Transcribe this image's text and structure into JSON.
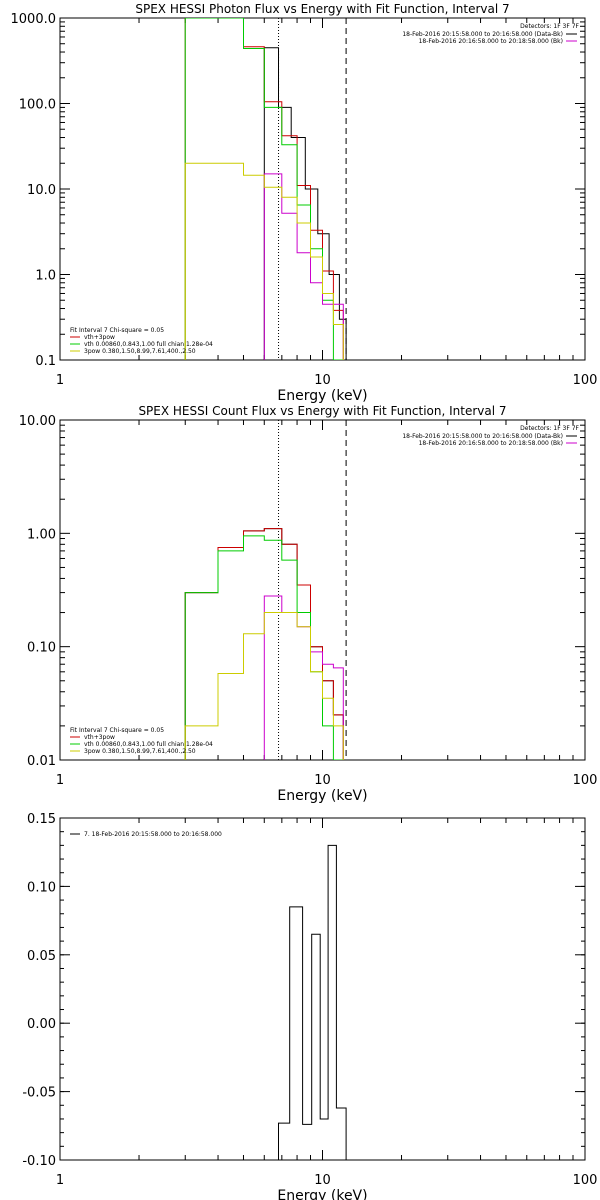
{
  "chart_data": [
    {
      "type": "line",
      "title": "SPEX HESSI Photon Flux vs Energy with Fit Function, Interval 7",
      "xlabel": "Energy (keV)",
      "ylabel": "",
      "xscale": "log",
      "yscale": "log",
      "xlim": [
        1,
        100
      ],
      "ylim": [
        0.1,
        1000
      ],
      "x_ticks": [
        {
          "v": 1,
          "label": "1"
        },
        {
          "v": 10,
          "label": "10"
        },
        {
          "v": 100,
          "label": "100"
        }
      ],
      "y_ticks": [
        {
          "v": 0.1,
          "label": "0.1"
        },
        {
          "v": 1,
          "label": "1.0"
        },
        {
          "v": 10,
          "label": "10.0"
        },
        {
          "v": 100,
          "label": "100.0"
        },
        {
          "v": 1000,
          "label": "1000.0"
        }
      ],
      "vlines": [
        {
          "x": 6.8,
          "style": "dotted"
        },
        {
          "x": 12.3,
          "style": "dashed"
        }
      ],
      "info": {
        "detectors": "Detectors: 1F 3F 7F",
        "entries": [
          {
            "text": "18-Feb-2016 20:15:58.000 to 20:16:58.000 (Data-Bk)",
            "color": "#000000"
          },
          {
            "text": "18-Feb-2016 20:16:58.000 to 20:18:58.000 (Bk)",
            "color": "#cc00cc"
          }
        ]
      },
      "legend": {
        "header": "Fit Interval  7    Chi-square = 0.05",
        "entries": [
          {
            "text": "vth+3pow",
            "color": "#cc0000"
          },
          {
            "text": "vth 0.00860,0.843,1.00   full chian 1.28e-04",
            "color": "#00cc00"
          },
          {
            "text": "3pow 0.380,1.50,8.99,7.61,400.,2.50",
            "color": "#cccc00"
          }
        ]
      },
      "series": [
        {
          "color": "#000000",
          "edges": [
            6.0,
            6.8,
            7.6,
            8.6,
            9.6,
            10.6,
            11.6,
            12.3
          ],
          "values": [
            450,
            90,
            40,
            10,
            3,
            1,
            0.3
          ]
        },
        {
          "color": "#cc0000",
          "edges": [
            3.0,
            4.0,
            5.0,
            6.0,
            7.0,
            8.0,
            9.0,
            10.0,
            11.0,
            12.0
          ],
          "values": [
            1000,
            1000,
            460,
            105,
            42,
            11,
            3.3,
            1.1,
            0.38
          ]
        },
        {
          "color": "#00cc00",
          "edges": [
            3.0,
            4.0,
            5.0,
            6.0,
            7.0,
            8.0,
            9.0,
            10.0,
            11.0,
            12.0
          ],
          "values": [
            1000,
            1000,
            440,
            90,
            33,
            6.5,
            2.0,
            0.5,
            0.1
          ]
        },
        {
          "color": "#cc00cc",
          "edges": [
            6.0,
            7.0,
            8.0,
            9.0,
            10.0,
            11.0,
            12.0
          ],
          "values": [
            15,
            5.2,
            1.8,
            0.8,
            0.45,
            0.45
          ]
        },
        {
          "color": "#cccc00",
          "edges": [
            3.0,
            4.0,
            5.0,
            6.0,
            7.0,
            8.0,
            9.0,
            10.0,
            11.0,
            12.0
          ],
          "values": [
            20,
            20,
            14.5,
            10.5,
            8.0,
            4.0,
            1.6,
            0.6,
            0.26
          ]
        }
      ]
    },
    {
      "type": "line",
      "title": "SPEX HESSI Count Flux vs Energy with Fit Function, Interval 7",
      "xlabel": "Energy (keV)",
      "ylabel": "",
      "xscale": "log",
      "yscale": "log",
      "xlim": [
        1,
        100
      ],
      "ylim": [
        0.01,
        10
      ],
      "x_ticks": [
        {
          "v": 1,
          "label": "1"
        },
        {
          "v": 10,
          "label": "10"
        },
        {
          "v": 100,
          "label": "100"
        }
      ],
      "y_ticks": [
        {
          "v": 0.01,
          "label": "0.01"
        },
        {
          "v": 0.1,
          "label": "0.10"
        },
        {
          "v": 1,
          "label": "1.00"
        },
        {
          "v": 10,
          "label": "10.00"
        }
      ],
      "vlines": [
        {
          "x": 6.8,
          "style": "dotted"
        },
        {
          "x": 12.3,
          "style": "dashed"
        }
      ],
      "info": {
        "detectors": "Detectors: 1F 3F 7F",
        "entries": [
          {
            "text": "18-Feb-2016 20:15:58.000 to 20:16:58.000 (Data-Bk)",
            "color": "#000000"
          },
          {
            "text": "18-Feb-2016 20:16:58.000 to 20:18:58.000 (Bk)",
            "color": "#cc00cc"
          }
        ]
      },
      "legend": {
        "header": "Fit Interval  7    Chi-square = 0.05",
        "entries": [
          {
            "text": "vth+3pow",
            "color": "#cc0000"
          },
          {
            "text": "vth 0.00860,0.843,1.00   full chian 1.28e-04",
            "color": "#00cc00"
          },
          {
            "text": "3pow 0.380,1.50,8.99,7.61,400.,2.50",
            "color": "#cccc00"
          }
        ]
      },
      "series": [
        {
          "color": "#000000",
          "edges": [
            3.0,
            4.0,
            5.0,
            6.0,
            7.0,
            8.0,
            9.0,
            10.0,
            11.0,
            12.0
          ],
          "values": [
            0.3,
            0.75,
            1.05,
            1.1,
            0.8,
            0.35,
            0.1,
            0.05,
            0.025
          ]
        },
        {
          "color": "#cc0000",
          "edges": [
            3.0,
            4.0,
            5.0,
            6.0,
            7.0,
            8.0,
            9.0,
            10.0,
            11.0,
            12.0
          ],
          "values": [
            0.3,
            0.75,
            1.05,
            1.1,
            0.8,
            0.35,
            0.1,
            0.05,
            0.025
          ]
        },
        {
          "color": "#00cc00",
          "edges": [
            3.0,
            4.0,
            5.0,
            6.0,
            7.0,
            8.0,
            9.0,
            10.0,
            11.0,
            12.0
          ],
          "values": [
            0.3,
            0.7,
            0.95,
            0.87,
            0.58,
            0.2,
            0.06,
            0.02,
            0.01
          ]
        },
        {
          "color": "#cc00cc",
          "edges": [
            6.0,
            7.0,
            8.0,
            9.0,
            10.0,
            11.0,
            12.0
          ],
          "values": [
            0.28,
            0.2,
            0.15,
            0.09,
            0.07,
            0.065
          ]
        },
        {
          "color": "#cccc00",
          "edges": [
            3.0,
            4.0,
            5.0,
            6.0,
            7.0,
            8.0,
            9.0,
            10.0,
            11.0,
            12.0
          ],
          "values": [
            0.02,
            0.058,
            0.13,
            0.2,
            0.2,
            0.15,
            0.06,
            0.035,
            0.02
          ]
        }
      ]
    },
    {
      "type": "line",
      "title": "",
      "xlabel": "Energy (keV)",
      "ylabel": "",
      "xscale": "log",
      "yscale": "linear",
      "xlim": [
        1,
        100
      ],
      "ylim": [
        -0.1,
        0.15
      ],
      "x_ticks": [
        {
          "v": 1,
          "label": "1"
        },
        {
          "v": 10,
          "label": "10"
        },
        {
          "v": 100,
          "label": "100"
        }
      ],
      "y_ticks": [
        {
          "v": -0.1,
          "label": "-0.10"
        },
        {
          "v": -0.05,
          "label": "-0.05"
        },
        {
          "v": 0.0,
          "label": "0.00"
        },
        {
          "v": 0.05,
          "label": "0.05"
        },
        {
          "v": 0.1,
          "label": "0.10"
        },
        {
          "v": 0.15,
          "label": "0.15"
        }
      ],
      "legend": {
        "header": "",
        "entries": [
          {
            "text": "7. 18-Feb-2016 20:15:58.000 to 20:16:58.000",
            "color": "#000000"
          }
        ]
      },
      "series": [
        {
          "color": "#000000",
          "edges": [
            6.8,
            7.5,
            8.4,
            9.1,
            9.8,
            10.5,
            11.3,
            12.3
          ],
          "values": [
            -0.073,
            0.085,
            -0.074,
            0.065,
            -0.07,
            0.13,
            -0.062
          ]
        }
      ]
    }
  ]
}
